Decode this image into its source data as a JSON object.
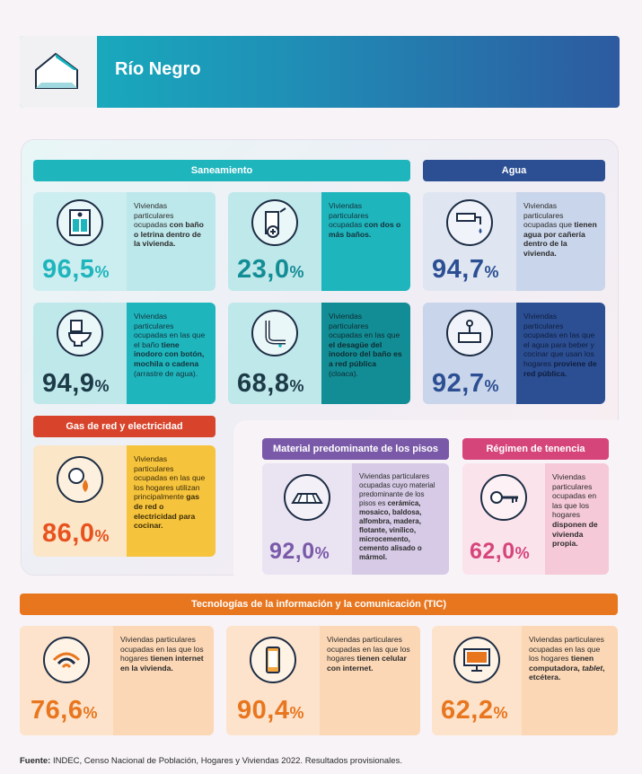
{
  "header": {
    "title": "Río Negro"
  },
  "sections": {
    "saneamiento": "Saneamiento",
    "agua": "Agua",
    "gas": "Gas de red y electricidad",
    "pisos": "Material predominante de los pisos",
    "tenencia": "Régimen de tenencia",
    "tic": "Tecnologías de la información y la comunicación (TIC)"
  },
  "cards": {
    "bano": {
      "pct": "96,5",
      "unit": "%",
      "t1": "Viviendas particulares ocupadas ",
      "b1": "con baño o letrina dentro de la vivienda."
    },
    "dosbanos": {
      "pct": "23,0",
      "unit": "%",
      "t1": "Viviendas particulares ocupadas ",
      "b1": "con dos o más baños."
    },
    "agua": {
      "pct": "94,7",
      "unit": "%",
      "t1": "Viviendas particulares ocupadas que ",
      "b1": "tienen agua por cañería dentro de la vivienda."
    },
    "inodoro": {
      "pct": "94,9",
      "unit": "%",
      "t1": "Viviendas particulares ocupadas en las que el baño ",
      "b1": "tiene inodoro con botón, mochila o cadena",
      "t2": " (arrastre de agua)."
    },
    "desague": {
      "pct": "68,8",
      "unit": "%",
      "t1": "Viviendas particulares ocupadas en las que ",
      "b1": "el desagüe del inodoro del baño es a red pública",
      "t2": " (cloaca)."
    },
    "aguared": {
      "pct": "92,7",
      "unit": "%",
      "t1": "Viviendas particulares ocupadas en las que el agua para beber y cocinar que usan los hogares ",
      "b1": "proviene de red pública."
    },
    "gas": {
      "pct": "86,0",
      "unit": "%",
      "t1": "Viviendas particulares ocupadas en las que los hogares utilizan principalmente ",
      "b1": "gas de red o electricidad para cocinar."
    },
    "pisos": {
      "pct": "92,0",
      "unit": "%",
      "t1": "Viviendas particulares ocupadas cuyo material predominante de los pisos es ",
      "b1": "cerámica, mosaico, baldosa, alfombra, madera, flotante, vinílico, microcemento, cemento alisado o mármol."
    },
    "tenencia": {
      "pct": "62,0",
      "unit": "%",
      "t1": "Viviendas particulares ocupadas en las que los hogares ",
      "b1": "disponen de vivienda propia."
    },
    "internet": {
      "pct": "76,6",
      "unit": "%",
      "t1": "Viviendas particulares ocupadas en las que los hogares ",
      "b1": "tienen internet en la vivienda."
    },
    "celular": {
      "pct": "90,4",
      "unit": "%",
      "t1": "Viviendas particulares ocupadas en las que los hogares ",
      "b1": "tienen celular con internet."
    },
    "computadora": {
      "pct": "62,2",
      "unit": "%",
      "t1": "Viviendas particulares ocupadas en las que los hogares ",
      "b1": "tienen computadora, ",
      "i1": "tablet",
      "b2": ", etcétera."
    }
  },
  "source": {
    "label": "Fuente:",
    "text": " INDEC, Censo Nacional de Población, Hogares y Viviendas 2022. Resultados provisionales."
  },
  "colors": {
    "teal": "#1fb5bd",
    "tealDark": "#138d95",
    "navy": "#2c4f93",
    "orange": "#e8761f",
    "purple": "#7a5aa8",
    "pink": "#d6457a",
    "red": "#d8442b",
    "yellow": "#f6c33c"
  }
}
